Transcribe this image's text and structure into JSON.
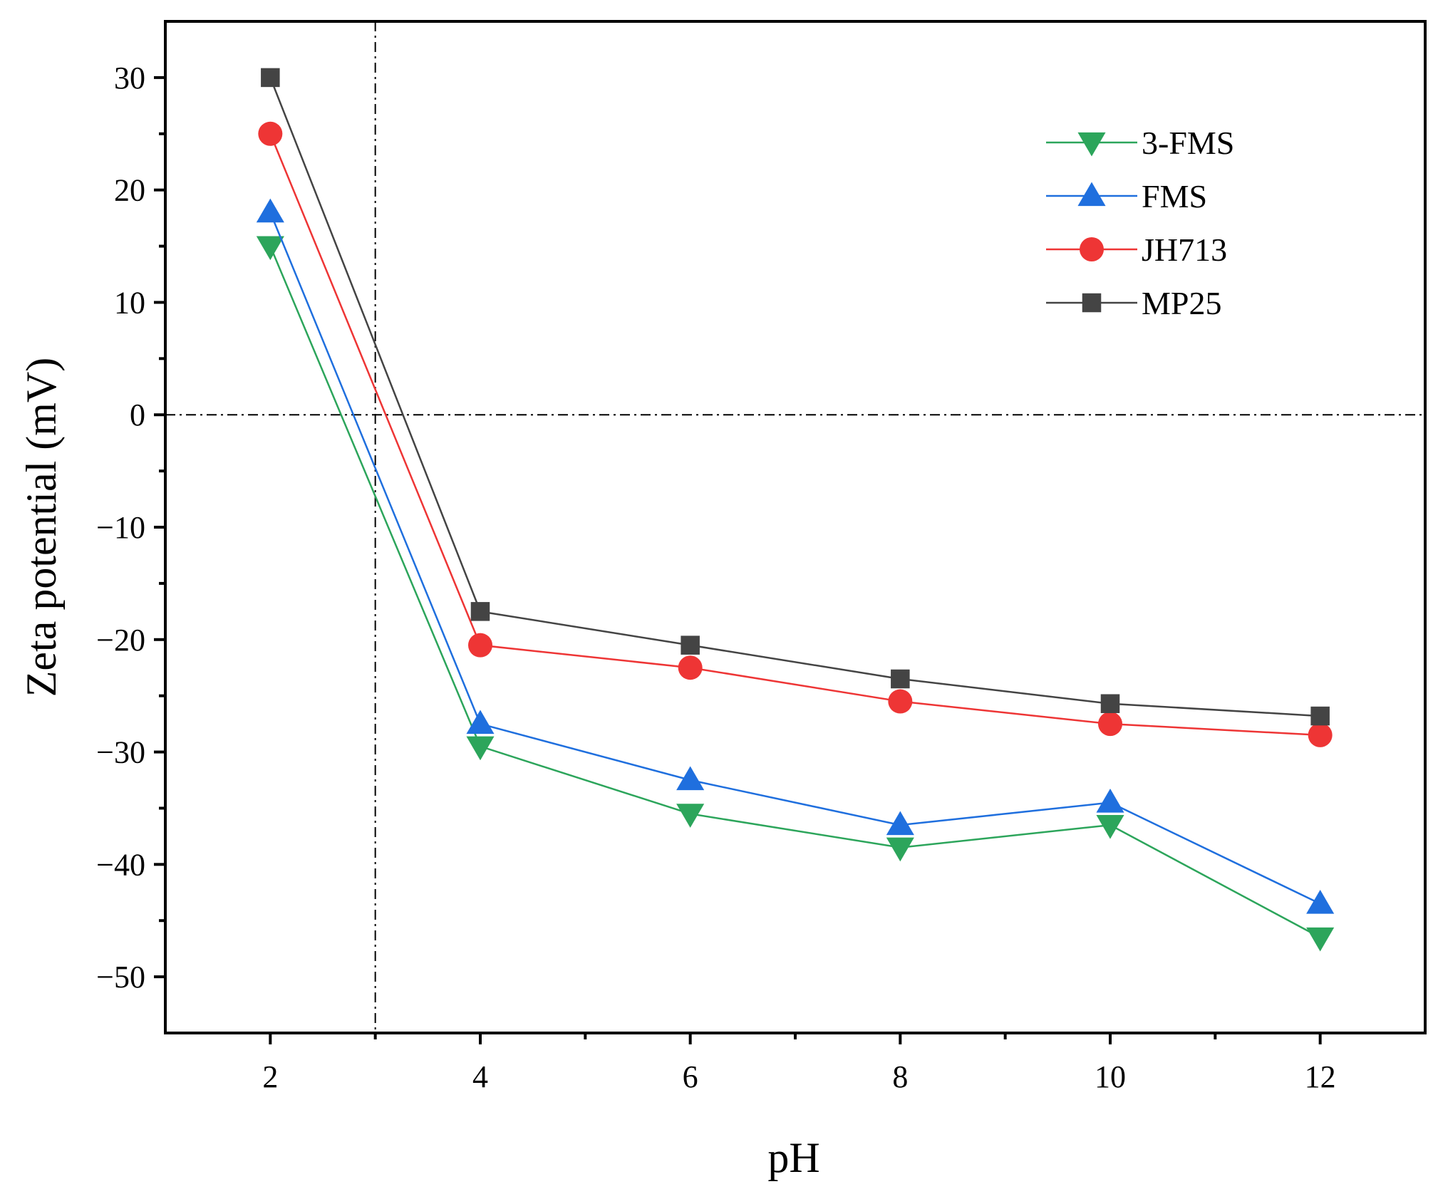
{
  "chart_data": {
    "type": "line",
    "title": "",
    "xlabel": "pH",
    "ylabel": "Zeta potential (mV)",
    "xlim": [
      1,
      13
    ],
    "ylim": [
      -55,
      35
    ],
    "x_ticks": [
      2,
      4,
      6,
      8,
      10,
      12
    ],
    "x_tick_labels": [
      "2",
      "4",
      "6",
      "8",
      "10",
      "12"
    ],
    "y_ticks": [
      30,
      20,
      10,
      0,
      -10,
      -20,
      -30,
      -40,
      -50
    ],
    "y_tick_labels": [
      "30",
      "20",
      "10",
      "0",
      "−10",
      "−20",
      "−30",
      "−40",
      "−50"
    ],
    "reference_lines": {
      "horizontal_y": 0,
      "vertical_x": 3,
      "style": "dash-dot"
    },
    "legend_position": "top-right",
    "x": [
      2,
      4,
      6,
      8,
      10,
      12
    ],
    "series": [
      {
        "name": "3-FMS",
        "marker": "triangle-down",
        "color": "#2ca55b",
        "values": [
          15,
          -29.5,
          -35.5,
          -38.5,
          -36.5,
          -46.5
        ]
      },
      {
        "name": "FMS",
        "marker": "triangle-up",
        "color": "#1f6fde",
        "values": [
          18,
          -27.5,
          -32.5,
          -36.5,
          -34.5,
          -43.5
        ]
      },
      {
        "name": "JH713",
        "marker": "circle",
        "color": "#ee3535",
        "values": [
          25,
          -20.5,
          -22.5,
          -25.5,
          -27.5,
          -28.5
        ]
      },
      {
        "name": "MP25",
        "marker": "square",
        "color": "#444444",
        "values": [
          30,
          -17.5,
          -20.5,
          -23.5,
          -25.7,
          -26.8
        ]
      }
    ]
  }
}
